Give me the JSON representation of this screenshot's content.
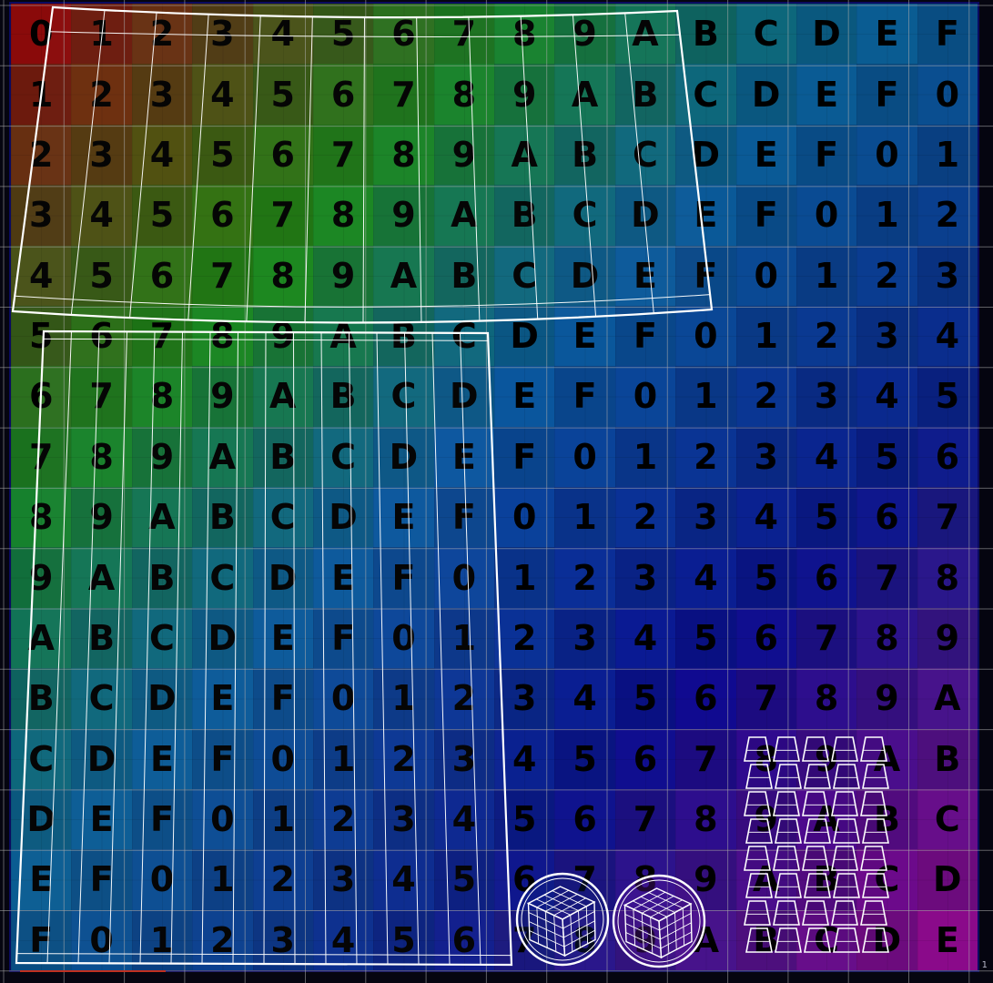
{
  "uv_texture": {
    "columns": 16,
    "rows": 16,
    "glyphs": [
      "0",
      "1",
      "2",
      "3",
      "4",
      "5",
      "6",
      "7",
      "8",
      "9",
      "A",
      "B",
      "C",
      "D",
      "E",
      "F"
    ],
    "gradient": {
      "top_left": "#8a0a0a",
      "top_right": "#0a6a78",
      "bottom_left": "#0a6a78",
      "center": "#0a5aa0",
      "deep": "#0a0a90",
      "bottom_right": "#8a0a8a",
      "mid_top": "#1a8a10"
    },
    "grid_color": "#aaaaaa"
  },
  "islands": {
    "outline_color": "#ffffff",
    "top_strip_columns": 12,
    "tall_strip_columns": 8,
    "small_pieces_rows": 8,
    "small_pieces_columns": 5
  },
  "corner_label": "1"
}
